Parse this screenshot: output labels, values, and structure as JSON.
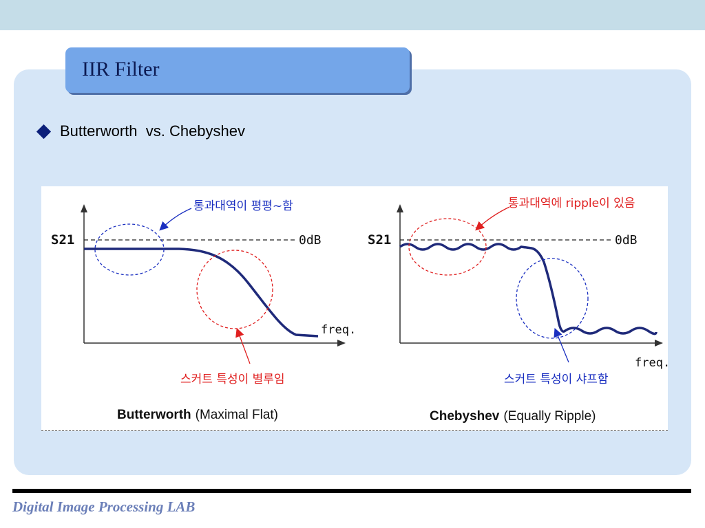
{
  "slide": {
    "title": "IIR Filter",
    "bullet": "Butterworth  vs. Chebyshev",
    "footer": "Digital Image Processing LAB"
  },
  "figure": {
    "left": {
      "ylabel": "S21",
      "ref_label": "0dB",
      "xlabel": "freq.",
      "annotation_top": "통과대역이 평평~함",
      "annotation_bottom": "스커트 특성이 별루임",
      "caption_bold": "Butterworth",
      "caption_rest": "(Maximal Flat)"
    },
    "right": {
      "ylabel": "S21",
      "ref_label": "0dB",
      "xlabel": "freq.",
      "annotation_top": "통과대역에 ripple이 있음",
      "annotation_bottom": "스커트 특성이 샤프함",
      "caption_bold": "Chebyshev",
      "caption_rest": "(Equally Ripple)"
    }
  },
  "colors": {
    "curve": "#1f2a7a",
    "red_annotation": "#e02020",
    "blue_annotation": "#1a2fc0",
    "title_tab": "#74a6e9",
    "panel": "#d6e6f7"
  }
}
